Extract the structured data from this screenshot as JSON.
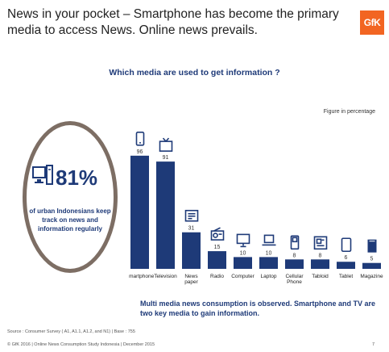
{
  "slide": {
    "title": "News in your pocket – Smartphone has become the primary media to access News. Online news prevails.",
    "logo_text": "GfK",
    "question": "Which media are used to get information ?",
    "figure_note": "Figure in percentage",
    "stat_value": "81%",
    "stat_text": "of urban Indonesians keep track on news and information regularly",
    "insight": "Multi media news consumption is observed. Smartphone and TV are two key media to gain information.",
    "source": "Source : Consumer Survey  ( A1, A1.1, A1.2, and N1) | Base : 755",
    "footer": "© GfK 2016 | Online News Consumption Study Indonesia | December 2015",
    "page_number": "7"
  },
  "colors": {
    "bar": "#1e3a78",
    "accent": "#f26522",
    "ring": "#7d6e64"
  },
  "icons": [
    "smartphone-icon",
    "television-icon",
    "newspaper-icon",
    "radio-icon",
    "computer-icon",
    "laptop-icon",
    "cellular-phone-icon",
    "tabloid-icon",
    "tablet-icon",
    "magazine-icon"
  ],
  "chart_data": {
    "type": "bar",
    "categories": [
      "Smartphone",
      "Television",
      "News paper",
      "Radio",
      "Computer",
      "Laptop",
      "Cellular Phone",
      "Tabloid",
      "Tablet",
      "Magazine"
    ],
    "values": [
      96,
      91,
      31,
      15,
      10,
      10,
      8,
      8,
      6,
      5
    ],
    "title": "Which media are used to get information ?",
    "ylim": [
      0,
      100
    ],
    "grid": false
  }
}
